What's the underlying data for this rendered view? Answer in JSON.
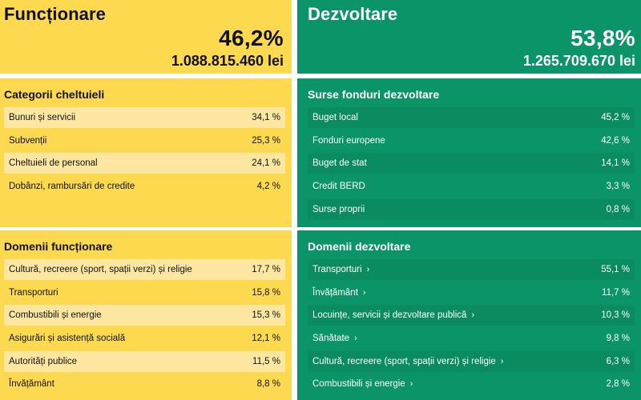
{
  "functionare": {
    "title": "Funcționare",
    "percent": "46,2%",
    "amount": "1.088.815.460 lei"
  },
  "dezvoltare": {
    "title": "Dezvoltare",
    "percent": "53,8%",
    "amount": "1.265.709.670 lei"
  },
  "categorii": {
    "title": "Categorii cheltuieli",
    "rows": [
      {
        "label": "Bunuri și servicii",
        "value": "34,1 %"
      },
      {
        "label": "Subvenții",
        "value": "25,3 %"
      },
      {
        "label": "Cheltuieli de personal",
        "value": "24,1 %"
      },
      {
        "label": "Dobânzi, rambursări de credite",
        "value": "4,2 %"
      }
    ]
  },
  "surse": {
    "title": "Surse fonduri dezvoltare",
    "rows": [
      {
        "label": "Buget local",
        "value": "45,2 %"
      },
      {
        "label": "Fonduri europene",
        "value": "42,6 %"
      },
      {
        "label": "Buget de stat",
        "value": "14,1 %"
      },
      {
        "label": "Credit BERD",
        "value": "3,3 %"
      },
      {
        "label": "Surse proprii",
        "value": "0,8 %"
      }
    ]
  },
  "domenii_functionare": {
    "title": "Domenii funcționare",
    "rows": [
      {
        "label": "Cultură, recreere (sport, spații verzi) și religie",
        "value": "17,7 %"
      },
      {
        "label": "Transporturi",
        "value": "15,8 %"
      },
      {
        "label": "Combustibili și energie",
        "value": "15,3 %"
      },
      {
        "label": "Asigurări și asistență socială",
        "value": "12,1 %"
      },
      {
        "label": "Autorități publice",
        "value": "11,5 %"
      },
      {
        "label": "Învățământ",
        "value": "8,8 %"
      }
    ]
  },
  "domenii_dezvoltare": {
    "title": "Domenii dezvoltare",
    "chevron": "›",
    "rows": [
      {
        "label": "Transporturi",
        "value": "55,1 %"
      },
      {
        "label": "Învățământ",
        "value": "11,7 %"
      },
      {
        "label": "Locuințe, servicii și dezvoltare publică",
        "value": "10,3 %"
      },
      {
        "label": "Sănătate",
        "value": "9,8 %"
      },
      {
        "label": "Cultură, recreere (sport, spații verzi) și religie",
        "value": "6,3 %"
      },
      {
        "label": "Combustibili și energie",
        "value": "2,8 %"
      }
    ]
  },
  "colors": {
    "yellow": "#fdd94f",
    "yellow_row": "#fde7a0",
    "green": "#0a9467",
    "green_row": "#0a8b60"
  }
}
